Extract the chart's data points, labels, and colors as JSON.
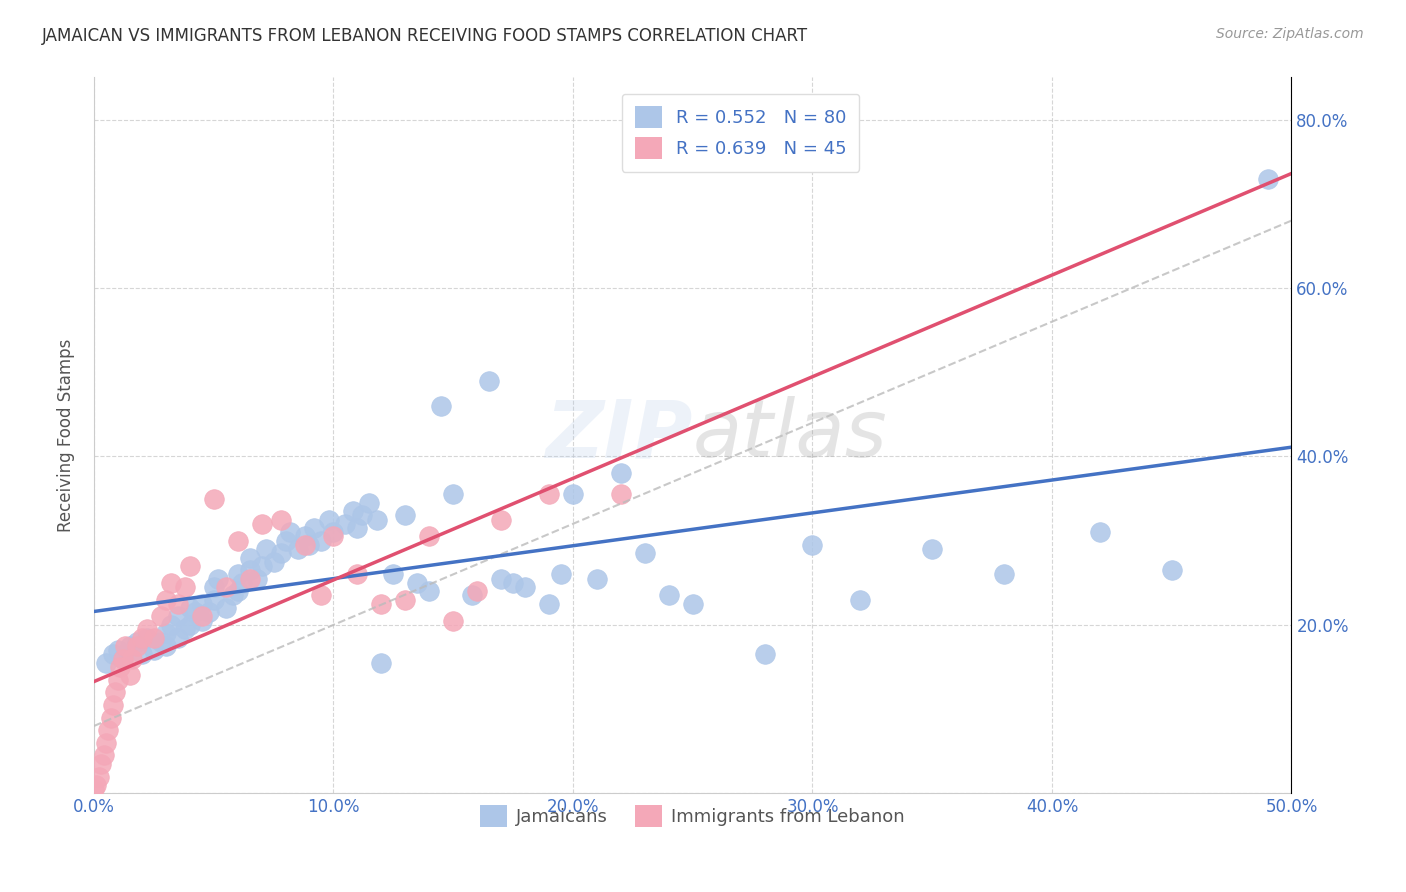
{
  "title": "JAMAICAN VS IMMIGRANTS FROM LEBANON RECEIVING FOOD STAMPS CORRELATION CHART",
  "source": "Source: ZipAtlas.com",
  "ylabel": "Receiving Food Stamps",
  "xlim": [
    0.0,
    0.5
  ],
  "ylim": [
    0.0,
    0.85
  ],
  "title_color": "#333333",
  "axis_label_color": "#4472c4",
  "grid_color": "#cccccc",
  "watermark_zip": "ZIP",
  "watermark_atlas": "atlas",
  "legend1_label": "R = 0.552   N = 80",
  "legend2_label": "R = 0.639   N = 45",
  "legend_color": "#4472c4",
  "scatter_blue_color": "#adc6e8",
  "scatter_pink_color": "#f4a8b8",
  "line_blue_color": "#4472c4",
  "line_pink_color": "#e05070",
  "line_dashed_color": "#bbbbbb",
  "jamaicans_x": [
    0.005,
    0.008,
    0.01,
    0.012,
    0.015,
    0.018,
    0.02,
    0.022,
    0.025,
    0.028,
    0.03,
    0.03,
    0.032,
    0.035,
    0.035,
    0.038,
    0.04,
    0.04,
    0.042,
    0.045,
    0.045,
    0.048,
    0.05,
    0.05,
    0.052,
    0.055,
    0.058,
    0.06,
    0.06,
    0.062,
    0.065,
    0.065,
    0.068,
    0.07,
    0.072,
    0.075,
    0.078,
    0.08,
    0.082,
    0.085,
    0.088,
    0.09,
    0.092,
    0.095,
    0.098,
    0.1,
    0.105,
    0.108,
    0.11,
    0.112,
    0.115,
    0.118,
    0.12,
    0.125,
    0.13,
    0.135,
    0.14,
    0.145,
    0.15,
    0.158,
    0.165,
    0.17,
    0.175,
    0.18,
    0.19,
    0.195,
    0.2,
    0.21,
    0.22,
    0.23,
    0.24,
    0.25,
    0.28,
    0.3,
    0.32,
    0.35,
    0.38,
    0.42,
    0.45,
    0.49
  ],
  "jamaicans_y": [
    0.155,
    0.165,
    0.17,
    0.16,
    0.175,
    0.18,
    0.165,
    0.185,
    0.17,
    0.18,
    0.175,
    0.19,
    0.2,
    0.185,
    0.21,
    0.195,
    0.2,
    0.22,
    0.215,
    0.205,
    0.225,
    0.215,
    0.23,
    0.245,
    0.255,
    0.22,
    0.235,
    0.24,
    0.26,
    0.25,
    0.265,
    0.28,
    0.255,
    0.27,
    0.29,
    0.275,
    0.285,
    0.3,
    0.31,
    0.29,
    0.305,
    0.295,
    0.315,
    0.3,
    0.325,
    0.31,
    0.32,
    0.335,
    0.315,
    0.33,
    0.345,
    0.325,
    0.155,
    0.26,
    0.33,
    0.25,
    0.24,
    0.46,
    0.355,
    0.235,
    0.49,
    0.255,
    0.25,
    0.245,
    0.225,
    0.26,
    0.355,
    0.255,
    0.38,
    0.285,
    0.235,
    0.225,
    0.165,
    0.295,
    0.23,
    0.29,
    0.26,
    0.31,
    0.265,
    0.73
  ],
  "lebanon_x": [
    0.0,
    0.001,
    0.002,
    0.003,
    0.004,
    0.005,
    0.006,
    0.007,
    0.008,
    0.009,
    0.01,
    0.011,
    0.012,
    0.013,
    0.015,
    0.016,
    0.018,
    0.02,
    0.022,
    0.025,
    0.028,
    0.03,
    0.032,
    0.035,
    0.038,
    0.04,
    0.045,
    0.05,
    0.055,
    0.06,
    0.065,
    0.07,
    0.078,
    0.088,
    0.095,
    0.1,
    0.11,
    0.12,
    0.13,
    0.14,
    0.15,
    0.16,
    0.17,
    0.19,
    0.22
  ],
  "lebanon_y": [
    0.005,
    0.01,
    0.02,
    0.035,
    0.045,
    0.06,
    0.075,
    0.09,
    0.105,
    0.12,
    0.135,
    0.15,
    0.16,
    0.175,
    0.14,
    0.16,
    0.175,
    0.185,
    0.195,
    0.185,
    0.21,
    0.23,
    0.25,
    0.225,
    0.245,
    0.27,
    0.21,
    0.35,
    0.245,
    0.3,
    0.255,
    0.32,
    0.325,
    0.295,
    0.235,
    0.305,
    0.26,
    0.225,
    0.23,
    0.305,
    0.205,
    0.24,
    0.325,
    0.355,
    0.355
  ]
}
